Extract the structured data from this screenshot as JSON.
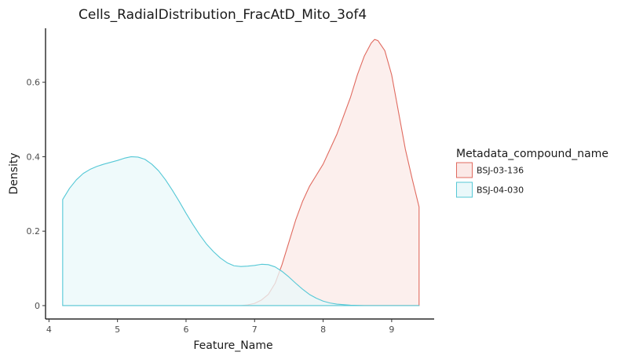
{
  "chart_data": {
    "type": "area",
    "title": "Cells_RadialDistribution_FracAtD_Mito_3of4",
    "xlabel": "Feature_Name",
    "ylabel": "Density",
    "xlim": [
      3.95,
      9.62
    ],
    "ylim": [
      -0.036,
      0.745
    ],
    "x_ticks": [
      4,
      5,
      6,
      7,
      8,
      9
    ],
    "y_ticks": [
      0,
      0.2,
      0.4,
      0.6
    ],
    "y_tick_labels": [
      "0",
      "0.2",
      "0.4",
      "0.6"
    ],
    "grid": false,
    "legend": {
      "title": "Metadata_compound_name",
      "position": "right"
    },
    "series": [
      {
        "name": "BSJ-03-136",
        "line_color": "#E06A5F",
        "fill_color": "#FBE9E7",
        "points": [
          [
            4.2,
            0.0
          ],
          [
            6.8,
            0.0
          ],
          [
            6.9,
            0.002
          ],
          [
            7.0,
            0.006
          ],
          [
            7.1,
            0.015
          ],
          [
            7.2,
            0.03
          ],
          [
            7.3,
            0.06
          ],
          [
            7.4,
            0.11
          ],
          [
            7.5,
            0.17
          ],
          [
            7.6,
            0.23
          ],
          [
            7.7,
            0.28
          ],
          [
            7.8,
            0.32
          ],
          [
            7.9,
            0.35
          ],
          [
            8.0,
            0.38
          ],
          [
            8.1,
            0.42
          ],
          [
            8.2,
            0.46
          ],
          [
            8.3,
            0.51
          ],
          [
            8.4,
            0.56
          ],
          [
            8.5,
            0.62
          ],
          [
            8.6,
            0.67
          ],
          [
            8.7,
            0.705
          ],
          [
            8.75,
            0.715
          ],
          [
            8.8,
            0.712
          ],
          [
            8.9,
            0.685
          ],
          [
            9.0,
            0.62
          ],
          [
            9.1,
            0.52
          ],
          [
            9.2,
            0.42
          ],
          [
            9.3,
            0.34
          ],
          [
            9.4,
            0.265
          ]
        ]
      },
      {
        "name": "BSJ-04-030",
        "line_color": "#55C8D6",
        "fill_color": "#EAF8FA",
        "points": [
          [
            4.2,
            0.285
          ],
          [
            4.3,
            0.315
          ],
          [
            4.4,
            0.338
          ],
          [
            4.5,
            0.355
          ],
          [
            4.6,
            0.366
          ],
          [
            4.7,
            0.374
          ],
          [
            4.8,
            0.38
          ],
          [
            4.9,
            0.385
          ],
          [
            5.0,
            0.39
          ],
          [
            5.1,
            0.396
          ],
          [
            5.2,
            0.4
          ],
          [
            5.3,
            0.399
          ],
          [
            5.4,
            0.393
          ],
          [
            5.5,
            0.38
          ],
          [
            5.6,
            0.362
          ],
          [
            5.7,
            0.338
          ],
          [
            5.8,
            0.31
          ],
          [
            5.9,
            0.28
          ],
          [
            6.0,
            0.248
          ],
          [
            6.1,
            0.218
          ],
          [
            6.2,
            0.19
          ],
          [
            6.3,
            0.165
          ],
          [
            6.4,
            0.145
          ],
          [
            6.5,
            0.128
          ],
          [
            6.6,
            0.115
          ],
          [
            6.7,
            0.107
          ],
          [
            6.8,
            0.105
          ],
          [
            6.9,
            0.106
          ],
          [
            7.0,
            0.108
          ],
          [
            7.1,
            0.111
          ],
          [
            7.2,
            0.11
          ],
          [
            7.3,
            0.104
          ],
          [
            7.4,
            0.092
          ],
          [
            7.5,
            0.077
          ],
          [
            7.6,
            0.06
          ],
          [
            7.7,
            0.044
          ],
          [
            7.8,
            0.03
          ],
          [
            7.9,
            0.02
          ],
          [
            8.0,
            0.012
          ],
          [
            8.1,
            0.007
          ],
          [
            8.2,
            0.004
          ],
          [
            8.4,
            0.001
          ],
          [
            8.6,
            0.0
          ],
          [
            9.4,
            0.0
          ]
        ]
      }
    ]
  }
}
